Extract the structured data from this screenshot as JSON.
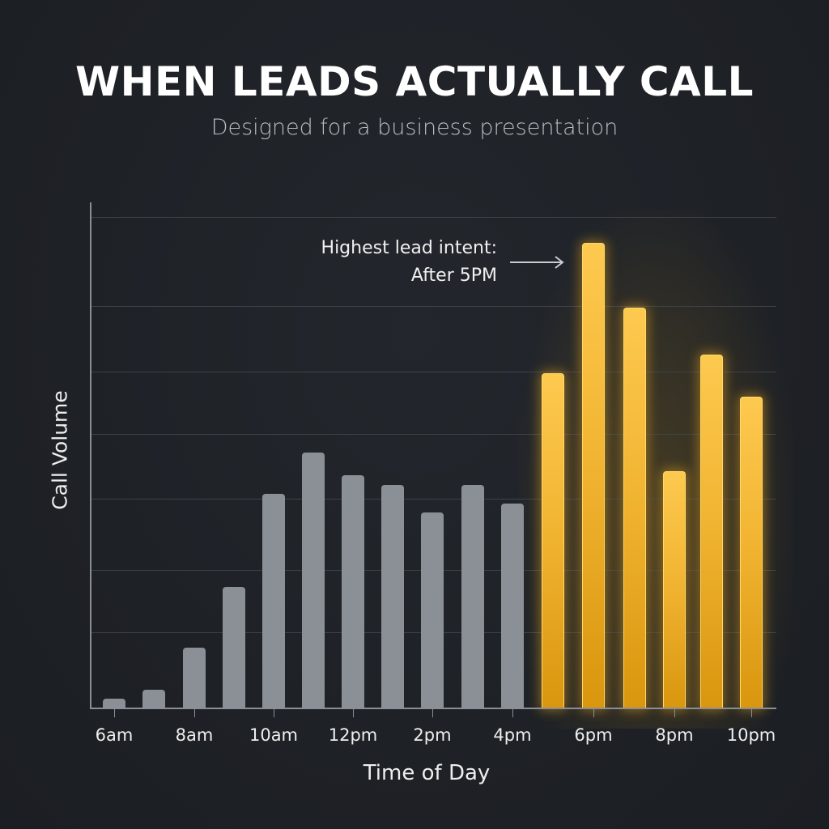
{
  "header": {
    "title": "WHEN LEADS ACTUALLY CALL",
    "subtitle": "Designed for a business presentation"
  },
  "annotation": {
    "line1": "Highest lead intent:",
    "line2": "After 5PM",
    "icon": "arrow-right-icon"
  },
  "axes": {
    "xlabel": "Time of Day",
    "ylabel": "Call Volume",
    "x_tick_labels": [
      "6am",
      "8am",
      "10am",
      "12pm",
      "2pm",
      "4pm",
      "6pm",
      "8pm",
      "10pm"
    ]
  },
  "colors": {
    "background": "#1e2126",
    "gray_bar": "#8b9097",
    "gold_bar": "#f2b533",
    "gold_bar_dark": "#d9960e",
    "gridline": "#3d4249",
    "axis": "#8a8f97"
  },
  "chart_data": {
    "type": "bar",
    "title": "WHEN LEADS ACTUALLY CALL",
    "subtitle": "Designed for a business presentation",
    "xlabel": "Time of Day",
    "ylabel": "Call Volume",
    "categories": [
      "6am",
      "7am",
      "8am",
      "9am",
      "10am",
      "11am",
      "12pm",
      "1pm",
      "2pm",
      "3pm",
      "4pm",
      "5pm",
      "6pm",
      "7pm",
      "8pm",
      "9pm",
      "10pm"
    ],
    "values": [
      2,
      4,
      13,
      26,
      46,
      55,
      50,
      48,
      42,
      48,
      44,
      72,
      100,
      86,
      51,
      76,
      67
    ],
    "value_units": "relative (peak = 100), no y-axis tick values shown",
    "highlight": {
      "categories": [
        "5pm",
        "6pm",
        "7pm",
        "8pm",
        "9pm",
        "10pm"
      ],
      "color": "#f2b533",
      "note": "Highest lead intent: After 5PM"
    },
    "base_color": "#8b9097",
    "x_tick_labels": [
      "6am",
      "8am",
      "10am",
      "12pm",
      "2pm",
      "4pm",
      "6pm",
      "8pm",
      "10pm"
    ],
    "y_tick_labels": [],
    "grid": true,
    "legend": "none",
    "ylim": [
      0,
      105
    ]
  }
}
